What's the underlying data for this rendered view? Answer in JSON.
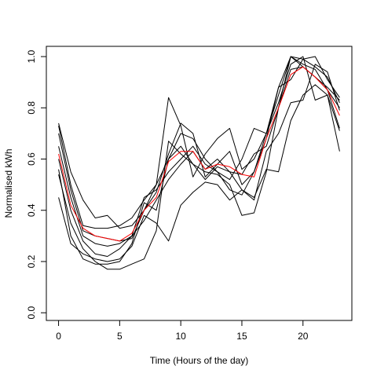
{
  "chart_data": {
    "type": "line",
    "title": "",
    "xlabel": "Time (Hours of the day)",
    "ylabel": "Normalised kWh",
    "xlim": [
      -1,
      24
    ],
    "ylim": [
      -0.03,
      1.04
    ],
    "x_ticks": [
      0,
      5,
      10,
      15,
      20
    ],
    "y_ticks": [
      0.0,
      0.2,
      0.4,
      0.6,
      0.8,
      1.0
    ],
    "x_tick_labels": [
      "0",
      "5",
      "10",
      "15",
      "20"
    ],
    "y_tick_labels": [
      "0.0",
      "0.2",
      "0.4",
      "0.6",
      "0.8",
      "1.0"
    ],
    "grid": false,
    "legend": "none",
    "x": [
      0,
      1,
      2,
      3,
      4,
      5,
      6,
      7,
      8,
      9,
      10,
      11,
      12,
      13,
      14,
      15,
      16,
      17,
      18,
      19,
      20,
      21,
      22,
      23
    ],
    "series": [
      {
        "color": "#000000",
        "values": [
          0.74,
          0.55,
          0.44,
          0.37,
          0.38,
          0.33,
          0.34,
          0.4,
          0.47,
          0.62,
          0.74,
          0.7,
          0.53,
          0.58,
          0.63,
          0.5,
          0.55,
          0.68,
          0.88,
          1.0,
          0.99,
          0.96,
          0.92,
          0.82
        ]
      },
      {
        "color": "#000000",
        "values": [
          0.73,
          0.5,
          0.34,
          0.33,
          0.33,
          0.34,
          0.37,
          0.44,
          0.5,
          0.84,
          0.73,
          0.53,
          0.62,
          0.68,
          0.72,
          0.56,
          0.6,
          0.7,
          0.88,
          0.91,
          0.99,
          1.0,
          0.91,
          0.84
        ]
      },
      {
        "color": "#000000",
        "values": [
          0.7,
          0.48,
          0.32,
          0.3,
          0.29,
          0.28,
          0.29,
          0.4,
          0.5,
          0.6,
          0.7,
          0.68,
          0.6,
          0.55,
          0.52,
          0.6,
          0.72,
          0.7,
          0.85,
          1.0,
          0.96,
          0.92,
          0.87,
          0.72
        ]
      },
      {
        "color": "#000000",
        "values": [
          0.65,
          0.45,
          0.3,
          0.27,
          0.26,
          0.27,
          0.3,
          0.45,
          0.48,
          0.55,
          0.6,
          0.65,
          0.58,
          0.55,
          0.48,
          0.46,
          0.55,
          0.7,
          0.82,
          0.97,
          1.0,
          0.83,
          0.85,
          0.63
        ]
      },
      {
        "color": "#000000",
        "values": [
          0.6,
          0.4,
          0.28,
          0.23,
          0.22,
          0.25,
          0.3,
          0.36,
          0.44,
          0.52,
          0.58,
          0.63,
          0.56,
          0.6,
          0.55,
          0.54,
          0.62,
          0.65,
          0.8,
          1.0,
          0.97,
          0.95,
          0.87,
          0.8
        ]
      },
      {
        "color": "#000000",
        "values": [
          0.56,
          0.3,
          0.21,
          0.19,
          0.19,
          0.2,
          0.27,
          0.43,
          0.4,
          0.6,
          0.65,
          0.58,
          0.55,
          0.54,
          0.5,
          0.38,
          0.39,
          0.55,
          0.8,
          0.95,
          0.96,
          0.92,
          0.88,
          0.83
        ]
      },
      {
        "color": "#000000",
        "values": [
          0.54,
          0.35,
          0.25,
          0.2,
          0.17,
          0.17,
          0.19,
          0.21,
          0.32,
          0.67,
          0.62,
          0.58,
          0.52,
          0.57,
          0.55,
          0.48,
          0.45,
          0.56,
          0.55,
          0.75,
          0.85,
          0.89,
          0.85,
          0.71
        ]
      },
      {
        "color": "#000000",
        "values": [
          0.45,
          0.27,
          0.23,
          0.21,
          0.2,
          0.21,
          0.26,
          0.38,
          0.35,
          0.28,
          0.42,
          0.47,
          0.51,
          0.5,
          0.44,
          0.48,
          0.44,
          0.63,
          0.7,
          0.82,
          0.83,
          0.97,
          0.94,
          0.79
        ]
      },
      {
        "color": "#ff0000",
        "values": [
          0.62,
          0.42,
          0.33,
          0.3,
          0.29,
          0.28,
          0.31,
          0.4,
          0.45,
          0.59,
          0.63,
          0.63,
          0.56,
          0.58,
          0.57,
          0.54,
          0.53,
          0.68,
          0.8,
          0.93,
          0.96,
          0.92,
          0.87,
          0.77
        ]
      }
    ]
  }
}
